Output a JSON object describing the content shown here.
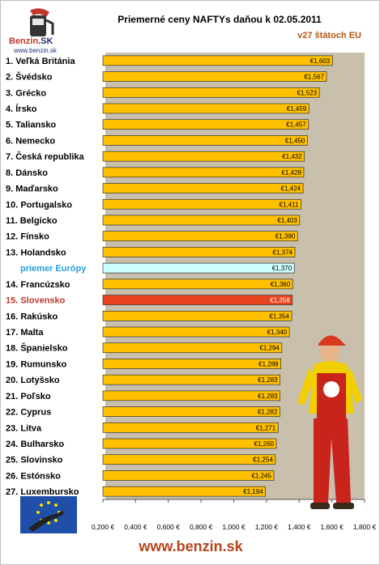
{
  "logo": {
    "brand": "Benzin",
    "brand_sk": ".SK",
    "url": "www.benzin.sk"
  },
  "title": "Priemerné ceny NAFTYs daňou k 02.05.2011",
  "subtitle": "v27 štátoch EU",
  "footer": {
    "url": "www.benzin.sk"
  },
  "colors": {
    "bar": "#ffc000",
    "highlight_bar": "#e8431e",
    "average_bar": "#ccffff",
    "plot_bg": "#c8bfad",
    "label": "#000000",
    "highlight_label": "#c0392b",
    "average_label": "#2a9fd6"
  },
  "chart_data": {
    "type": "bar",
    "orientation": "horizontal",
    "title": "Priemerné ceny NAFTYs daňou k 02.05.2011",
    "subtitle": "v27 štátoch EU",
    "xlim": [
      0.2,
      1.8
    ],
    "x_ticks": [
      "0,200 €",
      "0,400 €",
      "0,600 €",
      "0,800 €",
      "1,000 €",
      "1,200 €",
      "1,400 €",
      "1,600 €",
      "1,800 €"
    ],
    "categories": [
      "1. Veľká Británia",
      "2. Švédsko",
      "3. Grécko",
      "4. Írsko",
      "5. Taliansko",
      "6. Nemecko",
      "7. Česká republika",
      "8. Dánsko",
      "9. Maďarsko",
      "10. Portugalsko",
      "11. Belgicko",
      "12. Fínsko",
      "13. Holandsko",
      "priemer Európy",
      "14. Francúzsko",
      "15. Slovensko",
      "16. Rakúsko",
      "17. Malta",
      "18. Španielsko",
      "19. Rumunsko",
      "20. Lotyšsko",
      "21. Poľsko",
      "22. Cyprus",
      "23. Litva",
      "24. Bulharsko",
      "25. Slovinsko",
      "26. Estónsko",
      "27. Luxembursko"
    ],
    "values": [
      1.603,
      1.567,
      1.523,
      1.459,
      1.457,
      1.45,
      1.432,
      1.428,
      1.424,
      1.411,
      1.403,
      1.39,
      1.374,
      1.37,
      1.36,
      1.358,
      1.354,
      1.34,
      1.294,
      1.288,
      1.283,
      1.283,
      1.282,
      1.271,
      1.26,
      1.254,
      1.245,
      1.194
    ],
    "value_labels": [
      "€1,603",
      "€1,567",
      "€1,523",
      "€1,459",
      "€1,457",
      "€1,450",
      "€1,432",
      "€1,428",
      "€1,424",
      "€1,411",
      "€1,403",
      "€1,390",
      "€1,374",
      "€1,370",
      "€1,360",
      "€1,358",
      "€1,354",
      "€1,340",
      "€1,294",
      "€1,288",
      "€1,283",
      "€1,283",
      "€1,282",
      "€1,271",
      "€1,260",
      "€1,254",
      "€1,245",
      "€1,194"
    ],
    "highlight": "15. Slovensko",
    "average": "priemer Európy",
    "grid": false
  }
}
